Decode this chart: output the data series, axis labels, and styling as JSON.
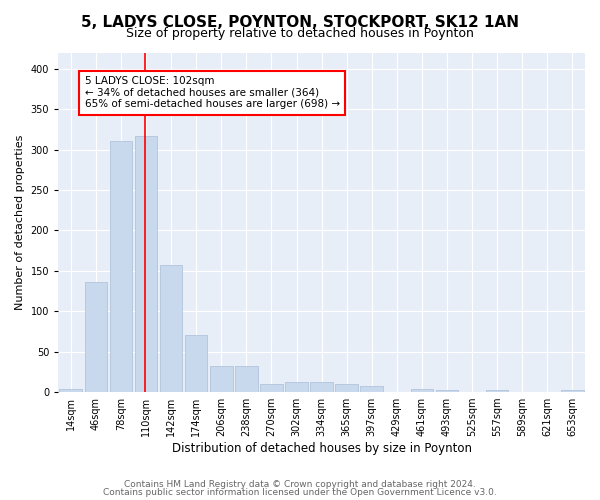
{
  "title": "5, LADYS CLOSE, POYNTON, STOCKPORT, SK12 1AN",
  "subtitle": "Size of property relative to detached houses in Poynton",
  "xlabel": "Distribution of detached houses by size in Poynton",
  "ylabel": "Number of detached properties",
  "categories": [
    "14sqm",
    "46sqm",
    "78sqm",
    "110sqm",
    "142sqm",
    "174sqm",
    "206sqm",
    "238sqm",
    "270sqm",
    "302sqm",
    "334sqm",
    "365sqm",
    "397sqm",
    "429sqm",
    "461sqm",
    "493sqm",
    "525sqm",
    "557sqm",
    "589sqm",
    "621sqm",
    "653sqm"
  ],
  "values": [
    4,
    136,
    311,
    317,
    157,
    70,
    32,
    32,
    10,
    13,
    13,
    10,
    8,
    0,
    4,
    3,
    0,
    2,
    0,
    0,
    3
  ],
  "bar_color": "#c8d9ee",
  "bar_edge_color": "#aabdd8",
  "property_line_x": 2.97,
  "annotation_text": "5 LADYS CLOSE: 102sqm\n← 34% of detached houses are smaller (364)\n65% of semi-detached houses are larger (698) →",
  "annotation_box_color": "white",
  "annotation_box_edge_color": "red",
  "line_color": "red",
  "ylim": [
    0,
    420
  ],
  "yticks": [
    0,
    50,
    100,
    150,
    200,
    250,
    300,
    350,
    400
  ],
  "plot_bg_color": "#e8eef8",
  "footer_line1": "Contains HM Land Registry data © Crown copyright and database right 2024.",
  "footer_line2": "Contains public sector information licensed under the Open Government Licence v3.0.",
  "title_fontsize": 11,
  "subtitle_fontsize": 9,
  "xlabel_fontsize": 8.5,
  "ylabel_fontsize": 8,
  "tick_fontsize": 7,
  "footer_fontsize": 6.5
}
